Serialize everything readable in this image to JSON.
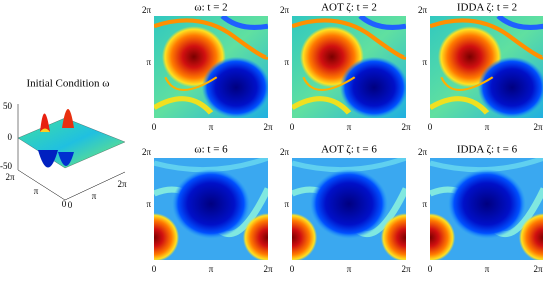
{
  "initial": {
    "title": "Initial Condition ω",
    "z_ticks": [
      "50",
      "0",
      "-50"
    ],
    "y_ticks": [
      "2π",
      "π",
      "0"
    ],
    "x_ticks": [
      "2π",
      "π",
      "0"
    ]
  },
  "ticks": {
    "x": [
      "0",
      "π",
      "2π"
    ],
    "y": [
      "2π",
      "π"
    ]
  },
  "rows": [
    {
      "panels": [
        {
          "title": "ω: t = 2"
        },
        {
          "title": "AOT ζ: t = 2"
        },
        {
          "title": "IDDA ζ: t = 2"
        }
      ]
    },
    {
      "panels": [
        {
          "title": "ω: t = 6"
        },
        {
          "title": "AOT ζ: t = 6"
        },
        {
          "title": "IDDA ζ: t = 6"
        }
      ]
    }
  ]
}
